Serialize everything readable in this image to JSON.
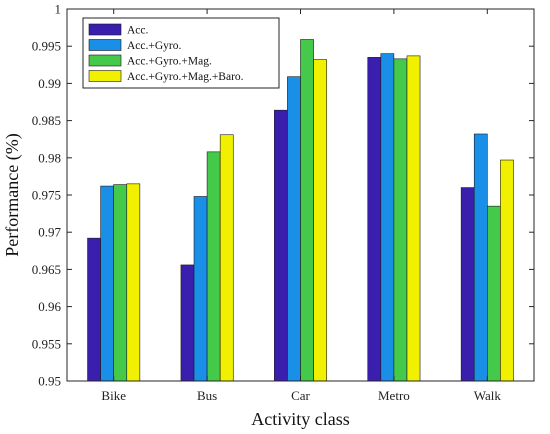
{
  "chart_data": {
    "type": "bar",
    "xlabel": "Activity class",
    "ylabel": "Performance (%)",
    "ylim": [
      0.95,
      1
    ],
    "yticks": [
      0.95,
      0.955,
      0.96,
      0.965,
      0.97,
      0.975,
      0.98,
      0.985,
      0.99,
      0.995,
      1
    ],
    "ytick_labels": [
      "0.95",
      "0.955",
      "0.96",
      "0.965",
      "0.97",
      "0.975",
      "0.98",
      "0.985",
      "0.99",
      "0.995",
      "1"
    ],
    "categories": [
      "Bike",
      "Bus",
      "Car",
      "Metro",
      "Walk"
    ],
    "grid": false,
    "legend_position": "top-left",
    "series": [
      {
        "name": "Acc.",
        "color": "#3a1fae",
        "values": [
          0.9692,
          0.9656,
          0.9864,
          0.9935,
          0.976
        ]
      },
      {
        "name": "Acc.+Gyro.",
        "color": "#1a8fe8",
        "values": [
          0.9762,
          0.9748,
          0.9909,
          0.994,
          0.9832
        ]
      },
      {
        "name": "Acc.+Gyro.+Mag.",
        "color": "#45c94a",
        "values": [
          0.9764,
          0.9808,
          0.9959,
          0.9933,
          0.9735
        ]
      },
      {
        "name": "Acc.+Gyro.+Mag.+Baro.",
        "color": "#f0f000",
        "values": [
          0.9765,
          0.9831,
          0.9932,
          0.9937,
          0.9797
        ]
      }
    ]
  }
}
